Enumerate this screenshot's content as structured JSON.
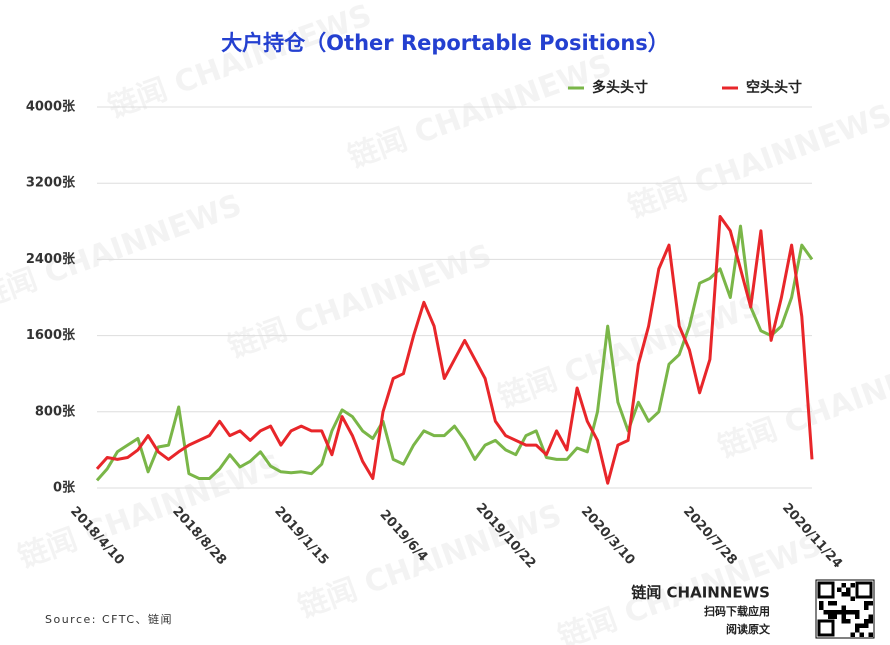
{
  "chart_data": {
    "type": "line",
    "title": "大户持仓（Other Reportable Positions）",
    "categories": [
      "2018/4/10",
      null,
      null,
      null,
      null,
      null,
      null,
      null,
      null,
      null,
      "2018/8/28",
      null,
      null,
      null,
      null,
      null,
      null,
      null,
      null,
      null,
      "2019/1/15",
      null,
      null,
      null,
      null,
      null,
      null,
      null,
      null,
      null,
      "2019/6/4",
      null,
      null,
      null,
      null,
      null,
      null,
      null,
      null,
      null,
      "2019/10/22",
      null,
      null,
      null,
      null,
      null,
      null,
      null,
      null,
      null,
      "2020/3/10",
      null,
      null,
      null,
      null,
      null,
      null,
      null,
      null,
      null,
      "2020/7/28",
      null,
      null,
      null,
      null,
      null,
      null,
      null,
      null,
      null,
      "2020/11/24"
    ],
    "series": [
      {
        "name": "多头头寸",
        "color": "#7ab648",
        "values": [
          80,
          200,
          380,
          450,
          520,
          170,
          430,
          450,
          850,
          150,
          100,
          100,
          200,
          350,
          220,
          280,
          380,
          230,
          170,
          160,
          170,
          150,
          250,
          600,
          820,
          750,
          600,
          520,
          700,
          300,
          250,
          450,
          600,
          550,
          550,
          650,
          500,
          300,
          450,
          500,
          400,
          350,
          550,
          600,
          320,
          300,
          300,
          420,
          380,
          800,
          1700,
          900,
          600,
          900,
          700,
          800,
          1300,
          1400,
          1700,
          2150,
          2200,
          2300,
          2000,
          2750,
          1900,
          1650,
          1600,
          1700,
          2000,
          2550,
          2400
        ]
      },
      {
        "name": "空头头寸",
        "color": "#e8262a",
        "values": [
          200,
          320,
          300,
          320,
          400,
          550,
          380,
          300,
          380,
          450,
          500,
          550,
          700,
          550,
          600,
          500,
          600,
          650,
          450,
          600,
          650,
          600,
          600,
          350,
          750,
          550,
          280,
          100,
          800,
          1150,
          1200,
          1600,
          1950,
          1700,
          1150,
          1350,
          1550,
          1350,
          1150,
          700,
          550,
          500,
          450,
          450,
          350,
          600,
          400,
          1050,
          700,
          500,
          50,
          450,
          500,
          1300,
          1700,
          2300,
          2550,
          1700,
          1450,
          1000,
          1350,
          2850,
          2700,
          2300,
          1900,
          2700,
          1550,
          2000,
          2550,
          1800,
          300
        ]
      }
    ],
    "ylim": [
      0,
      4000
    ],
    "yticks": [
      {
        "value": 0,
        "label": "0张"
      },
      {
        "value": 800,
        "label": "800张"
      },
      {
        "value": 1600,
        "label": "1600张"
      },
      {
        "value": 2400,
        "label": "2400张"
      },
      {
        "value": 3200,
        "label": "3200张"
      },
      {
        "value": 4000,
        "label": "4000张"
      }
    ],
    "grid": true,
    "legend": "top-right",
    "source": "Source: CFTC、链闻",
    "watermark": "链闻 CHAINNEWS",
    "brand": "链闻 CHAINNEWS",
    "brand_sub1": "扫码下载应用",
    "brand_sub2": "阅读原文"
  }
}
